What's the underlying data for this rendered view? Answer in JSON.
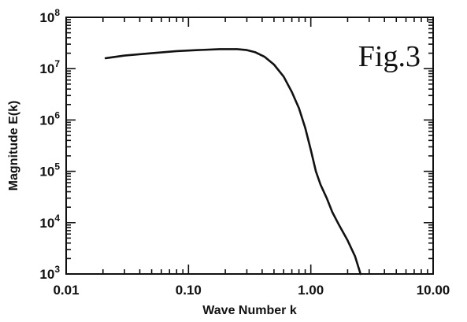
{
  "chart_data": {
    "type": "line",
    "xlabel": "Wave Number k",
    "ylabel": "Magnitude E(k)",
    "annotation": "Fig.3",
    "x_scale": "log",
    "y_scale": "log",
    "xlim": [
      0.01,
      10
    ],
    "ylim": [
      1000,
      100000000
    ],
    "x_ticks": [
      {
        "value": 0.01,
        "label": "0.01"
      },
      {
        "value": 0.1,
        "label": "0.10"
      },
      {
        "value": 1,
        "label": "1.00"
      },
      {
        "value": 10,
        "label": "10.00"
      }
    ],
    "y_ticks": [
      {
        "value": 1000,
        "base": "10",
        "exp": "3"
      },
      {
        "value": 10000,
        "base": "10",
        "exp": "4"
      },
      {
        "value": 100000,
        "base": "10",
        "exp": "5"
      },
      {
        "value": 1000000,
        "base": "10",
        "exp": "6"
      },
      {
        "value": 10000000,
        "base": "10",
        "exp": "7"
      },
      {
        "value": 100000000,
        "base": "10",
        "exp": "8"
      }
    ],
    "grid": false,
    "series": [
      {
        "x": [
          0.021,
          0.03,
          0.05,
          0.08,
          0.12,
          0.18,
          0.25,
          0.3,
          0.35,
          0.42,
          0.5,
          0.6,
          0.7,
          0.8,
          0.9,
          1.0,
          1.1,
          1.2,
          1.35,
          1.5,
          1.7,
          2.0,
          2.3,
          2.55
        ],
        "y": [
          16000000,
          18000000,
          20000000,
          22000000,
          23000000,
          24000000,
          24000000,
          23000000,
          21000000,
          17000000,
          12000000,
          7000000,
          3500000,
          1700000,
          700000,
          260000,
          100000,
          55000,
          30000,
          16000,
          9000,
          4500,
          2200,
          1000
        ]
      }
    ]
  }
}
